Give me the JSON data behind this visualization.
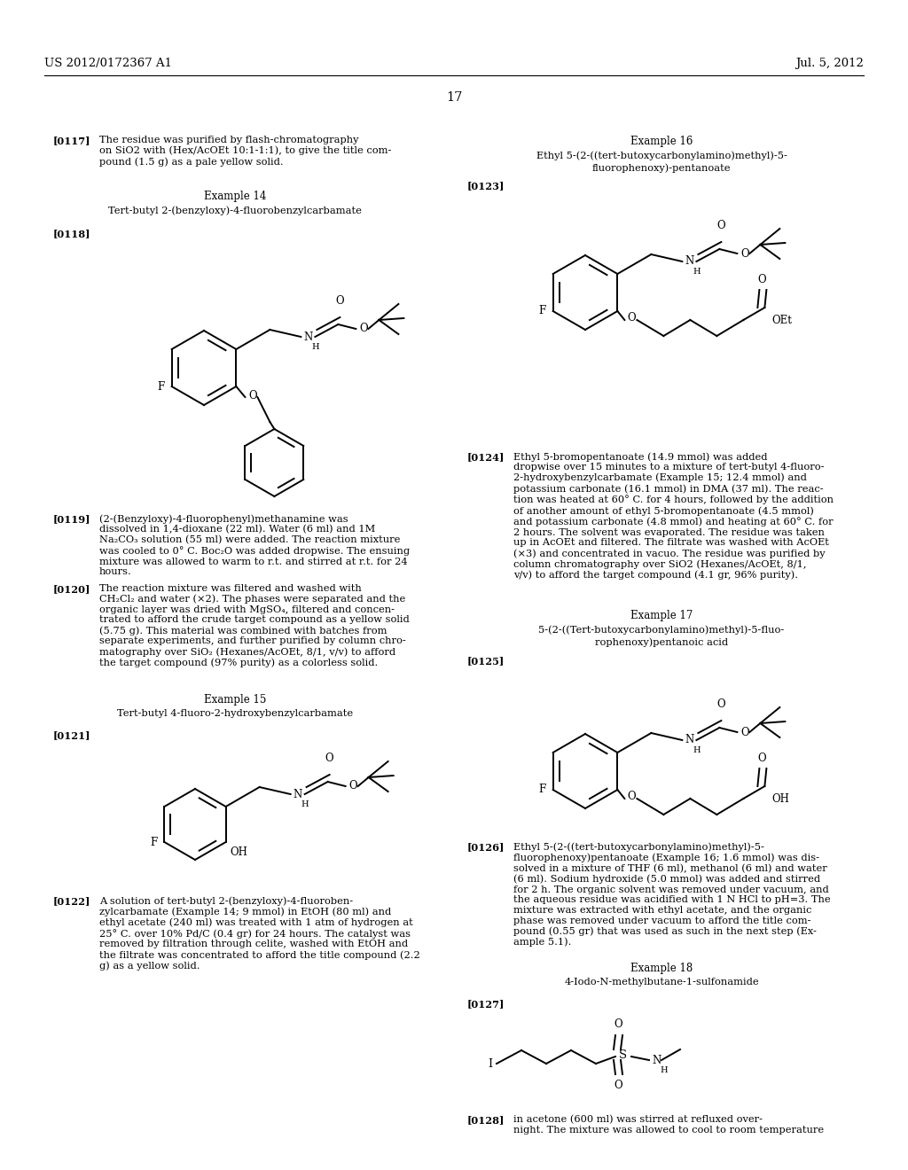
{
  "bg_color": "#ffffff",
  "header_left": "US 2012/0172367 A1",
  "header_right": "Jul. 5, 2012",
  "page_number": "17"
}
